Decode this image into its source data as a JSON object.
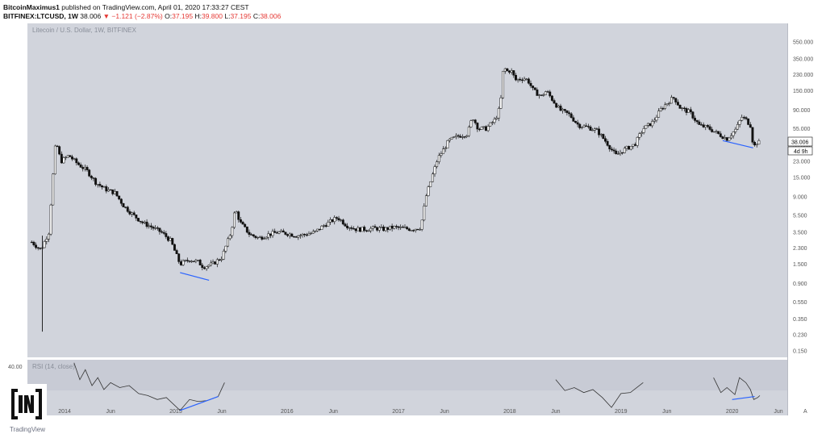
{
  "header": {
    "author": "BitcoinMaximus1",
    "published": "published on TradingView.com, April 01, 2020 17:33:27 CEST",
    "symbol": "BITFINEX:LTCUSD, 1W",
    "last": "38.006",
    "change": "▼ −1.121 (−2.87%)",
    "ohlc_o_label": "O:",
    "ohlc_o": "37.195",
    "ohlc_h_label": "H:",
    "ohlc_h": "39.800",
    "ohlc_l_label": "L:",
    "ohlc_l": "37.195",
    "ohlc_c_label": "C:",
    "ohlc_c": "38.006"
  },
  "colors": {
    "up": "#111111",
    "down": "#111111",
    "change": "#e53935",
    "ohlc": "#e53935",
    "divergence": "#2962ff",
    "pane": "#d1d4dc"
  },
  "watermark": "Litecoin / U.S. Dollar, 1W, BITFINEX",
  "price_tag": {
    "value": "38.006",
    "countdown": "4d 9h"
  },
  "rsi_label": "RSI (14, close)",
  "rsi_level": "40.00",
  "brand": {
    "logo_text": "[IN]",
    "tradingview": "TradingView"
  },
  "chart_data": {
    "type": "candlestick",
    "y_scale": "log",
    "y_ticks": [
      "550.000",
      "350.000",
      "230.000",
      "150.000",
      "90.000",
      "55.000",
      "35.000",
      "23.000",
      "15.000",
      "9.000",
      "5.500",
      "3.500",
      "2.300",
      "1.500",
      "0.900",
      "0.550",
      "0.350",
      "0.230",
      "0.150"
    ],
    "x_ticks": [
      "2014",
      "Jun",
      "2015",
      "Jun",
      "2016",
      "Jun",
      "2017",
      "Jun",
      "2018",
      "Jun",
      "2019",
      "Jun",
      "2020",
      "Jun"
    ],
    "x_range": [
      "2013-09-01",
      "2020-06-30"
    ],
    "price_path": [
      [
        "2013-09-15",
        2.7
      ],
      [
        "2013-10-15",
        2.2
      ],
      [
        "2013-11-10",
        3.5
      ],
      [
        "2013-11-25",
        18
      ],
      [
        "2013-12-03",
        40
      ],
      [
        "2013-12-20",
        23
      ],
      [
        "2014-01-15",
        27
      ],
      [
        "2014-02-10",
        22
      ],
      [
        "2014-03-15",
        18
      ],
      [
        "2014-04-15",
        13
      ],
      [
        "2014-05-15",
        11
      ],
      [
        "2014-06-15",
        10
      ],
      [
        "2014-07-15",
        7
      ],
      [
        "2014-08-15",
        5.5
      ],
      [
        "2014-09-15",
        4.5
      ],
      [
        "2014-10-15",
        4
      ],
      [
        "2014-11-15",
        3.5
      ],
      [
        "2014-12-15",
        2.8
      ],
      [
        "2015-01-15",
        1.5
      ],
      [
        "2015-02-15",
        1.7
      ],
      [
        "2015-03-15",
        1.6
      ],
      [
        "2015-04-01",
        1.4
      ],
      [
        "2015-05-01",
        1.5
      ],
      [
        "2015-06-01",
        1.8
      ],
      [
        "2015-07-01",
        3.5
      ],
      [
        "2015-07-15",
        6.5
      ],
      [
        "2015-08-01",
        4.5
      ],
      [
        "2015-09-01",
        3.3
      ],
      [
        "2015-10-01",
        3.0
      ],
      [
        "2015-11-01",
        3.3
      ],
      [
        "2015-12-01",
        3.5
      ],
      [
        "2016-01-01",
        3.4
      ],
      [
        "2016-02-01",
        3.2
      ],
      [
        "2016-03-01",
        3.3
      ],
      [
        "2016-04-01",
        3.5
      ],
      [
        "2016-05-01",
        4.2
      ],
      [
        "2016-06-15",
        5.2
      ],
      [
        "2016-07-15",
        4.2
      ],
      [
        "2016-08-15",
        3.8
      ],
      [
        "2016-09-15",
        3.8
      ],
      [
        "2016-10-15",
        3.9
      ],
      [
        "2016-11-15",
        3.8
      ],
      [
        "2016-12-15",
        4.0
      ],
      [
        "2017-01-15",
        3.9
      ],
      [
        "2017-02-15",
        3.8
      ],
      [
        "2017-03-15",
        4.0
      ],
      [
        "2017-04-01",
        9
      ],
      [
        "2017-04-20",
        15
      ],
      [
        "2017-05-10",
        25
      ],
      [
        "2017-05-25",
        30
      ],
      [
        "2017-06-15",
        40
      ],
      [
        "2017-07-15",
        45
      ],
      [
        "2017-08-15",
        48
      ],
      [
        "2017-09-01",
        75
      ],
      [
        "2017-09-20",
        55
      ],
      [
        "2017-10-15",
        55
      ],
      [
        "2017-11-15",
        70
      ],
      [
        "2017-12-01",
        100
      ],
      [
        "2017-12-12",
        300
      ],
      [
        "2017-12-20",
        250
      ],
      [
        "2018-01-05",
        260
      ],
      [
        "2018-01-20",
        200
      ],
      [
        "2018-02-15",
        210
      ],
      [
        "2018-03-01",
        200
      ],
      [
        "2018-03-20",
        150
      ],
      [
        "2018-04-15",
        130
      ],
      [
        "2018-05-01",
        150
      ],
      [
        "2018-05-20",
        120
      ],
      [
        "2018-06-15",
        90
      ],
      [
        "2018-07-15",
        80
      ],
      [
        "2018-08-15",
        60
      ],
      [
        "2018-09-15",
        57
      ],
      [
        "2018-10-15",
        52
      ],
      [
        "2018-11-15",
        38
      ],
      [
        "2018-12-15",
        27
      ],
      [
        "2019-01-15",
        32
      ],
      [
        "2019-02-15",
        36
      ],
      [
        "2019-03-15",
        55
      ],
      [
        "2019-04-15",
        65
      ],
      [
        "2019-05-15",
        95
      ],
      [
        "2019-06-15",
        120
      ],
      [
        "2019-06-25",
        125
      ],
      [
        "2019-07-15",
        95
      ],
      [
        "2019-08-15",
        85
      ],
      [
        "2019-09-15",
        60
      ],
      [
        "2019-10-15",
        56
      ],
      [
        "2019-11-15",
        48
      ],
      [
        "2019-12-15",
        42
      ],
      [
        "2020-01-15",
        55
      ],
      [
        "2020-02-01",
        75
      ],
      [
        "2020-02-15",
        70
      ],
      [
        "2020-03-01",
        60
      ],
      [
        "2020-03-12",
        32
      ],
      [
        "2020-03-18",
        38
      ],
      [
        "2020-04-01",
        38
      ]
    ],
    "rsi_path": [
      [
        "2014-02-01",
        75
      ],
      [
        "2014-02-20",
        58
      ],
      [
        "2014-03-10",
        68
      ],
      [
        "2014-04-01",
        52
      ],
      [
        "2014-04-20",
        60
      ],
      [
        "2014-05-10",
        48
      ],
      [
        "2014-06-01",
        55
      ],
      [
        "2014-07-01",
        50
      ],
      [
        "2014-08-01",
        52
      ],
      [
        "2014-09-01",
        44
      ],
      [
        "2014-10-01",
        42
      ],
      [
        "2014-11-01",
        38
      ],
      [
        "2014-12-01",
        40
      ],
      [
        "2015-01-15",
        27
      ],
      [
        "2015-02-15",
        38
      ],
      [
        "2015-03-15",
        36
      ],
      [
        "2015-04-15",
        37
      ],
      [
        "2015-05-20",
        41
      ],
      [
        "2015-06-10",
        55
      ],
      [
        "2018-06-01",
        58
      ],
      [
        "2018-07-01",
        47
      ],
      [
        "2018-08-01",
        50
      ],
      [
        "2018-09-01",
        45
      ],
      [
        "2018-10-01",
        48
      ],
      [
        "2018-11-01",
        40
      ],
      [
        "2018-12-01",
        30
      ],
      [
        "2019-01-01",
        44
      ],
      [
        "2019-02-01",
        45
      ],
      [
        "2019-03-15",
        55
      ],
      [
        "2019-11-01",
        60
      ],
      [
        "2019-11-25",
        45
      ],
      [
        "2019-12-15",
        50
      ],
      [
        "2020-01-10",
        43
      ],
      [
        "2020-01-25",
        60
      ],
      [
        "2020-02-15",
        55
      ],
      [
        "2020-03-01",
        48
      ],
      [
        "2020-03-12",
        38
      ],
      [
        "2020-03-25",
        40
      ],
      [
        "2020-04-01",
        42
      ]
    ],
    "divergence_lines": [
      {
        "pane": "price",
        "from": [
          "2015-01-15",
          1.2
        ],
        "to": [
          "2015-04-20",
          0.98
        ]
      },
      {
        "pane": "price",
        "from": [
          "2019-12-01",
          40
        ],
        "to": [
          "2020-03-10",
          33
        ]
      },
      {
        "pane": "rsi",
        "from": [
          "2015-01-15",
          27
        ],
        "to": [
          "2015-05-20",
          41
        ]
      },
      {
        "pane": "rsi",
        "from": [
          "2020-01-01",
          38
        ],
        "to": [
          "2020-03-15",
          41
        ]
      }
    ]
  }
}
